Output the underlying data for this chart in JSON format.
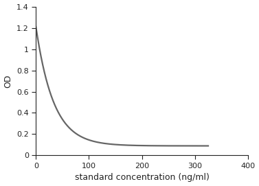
{
  "title": "",
  "xlabel": "standard concentration (ng/ml)",
  "ylabel": "OD",
  "xlim": [
    0,
    400
  ],
  "ylim": [
    0,
    1.4
  ],
  "xticks": [
    0,
    100,
    200,
    300,
    400
  ],
  "yticks": [
    0,
    0.2,
    0.4,
    0.6,
    0.8,
    1.0,
    1.2,
    1.4
  ],
  "line_color": "#666666",
  "line_width": 1.6,
  "background_color": "#ffffff",
  "spine_color": "#222222",
  "tick_color": "#222222",
  "label_color": "#222222",
  "curve_params": {
    "a": 1.12,
    "b": 0.03,
    "c": 0.09
  }
}
